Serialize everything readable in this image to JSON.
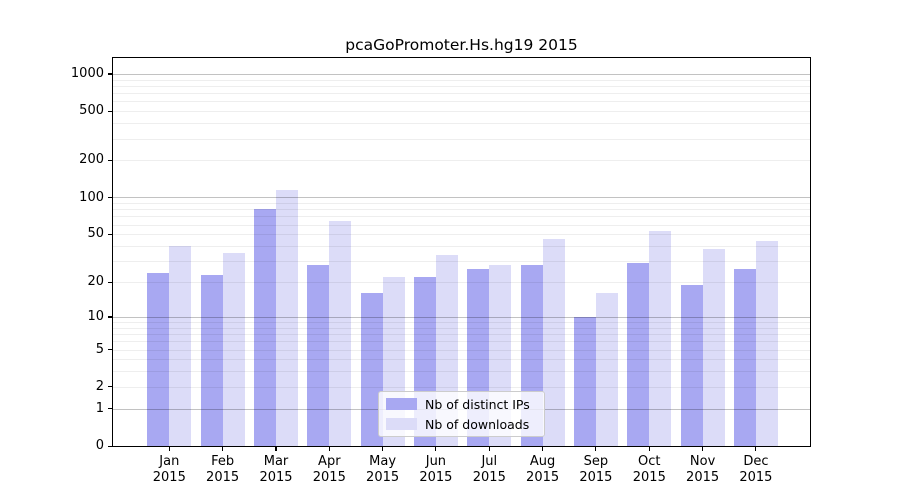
{
  "title": "pcaGoPromoter.Hs.hg19 2015",
  "legend": {
    "items": [
      {
        "label": "Nb of distinct IPs",
        "color": "#a8a8f2"
      },
      {
        "label": "Nb of downloads",
        "color": "#dcdcf8"
      }
    ]
  },
  "chart_data": {
    "type": "bar",
    "title": "pcaGoPromoter.Hs.hg19 2015",
    "categories": [
      "Jan 2015",
      "Feb 2015",
      "Mar 2015",
      "Apr 2015",
      "May 2015",
      "Jun 2015",
      "Jul 2015",
      "Aug 2015",
      "Sep 2015",
      "Oct 2015",
      "Nov 2015",
      "Dec 2015"
    ],
    "months": [
      "Jan",
      "Feb",
      "Mar",
      "Apr",
      "May",
      "Jun",
      "Jul",
      "Aug",
      "Sep",
      "Oct",
      "Nov",
      "Dec"
    ],
    "year": "2015",
    "series": [
      {
        "name": "Nb of distinct IPs",
        "color": "#a8a8f2",
        "values": [
          24,
          23,
          80,
          28,
          16,
          22,
          26,
          28,
          10,
          29,
          19,
          26
        ]
      },
      {
        "name": "Nb of downloads",
        "color": "#dcdcf8",
        "values": [
          40,
          35,
          115,
          64,
          22,
          34,
          28,
          46,
          16,
          53,
          38,
          44
        ]
      }
    ],
    "xlabel": "",
    "ylabel": "",
    "yscale": "log1p",
    "ylim": [
      0,
      1000
    ],
    "yticks": [
      0,
      1,
      2,
      5,
      10,
      20,
      50,
      100,
      200,
      500,
      1000
    ],
    "grid_major": [
      1,
      10,
      100,
      1000
    ],
    "grid_minor": [
      2,
      3,
      4,
      5,
      6,
      7,
      8,
      9,
      20,
      30,
      40,
      50,
      60,
      70,
      80,
      90,
      200,
      300,
      400,
      500,
      600,
      700,
      800,
      900
    ],
    "grid": "on",
    "legend_position": "lower center"
  }
}
